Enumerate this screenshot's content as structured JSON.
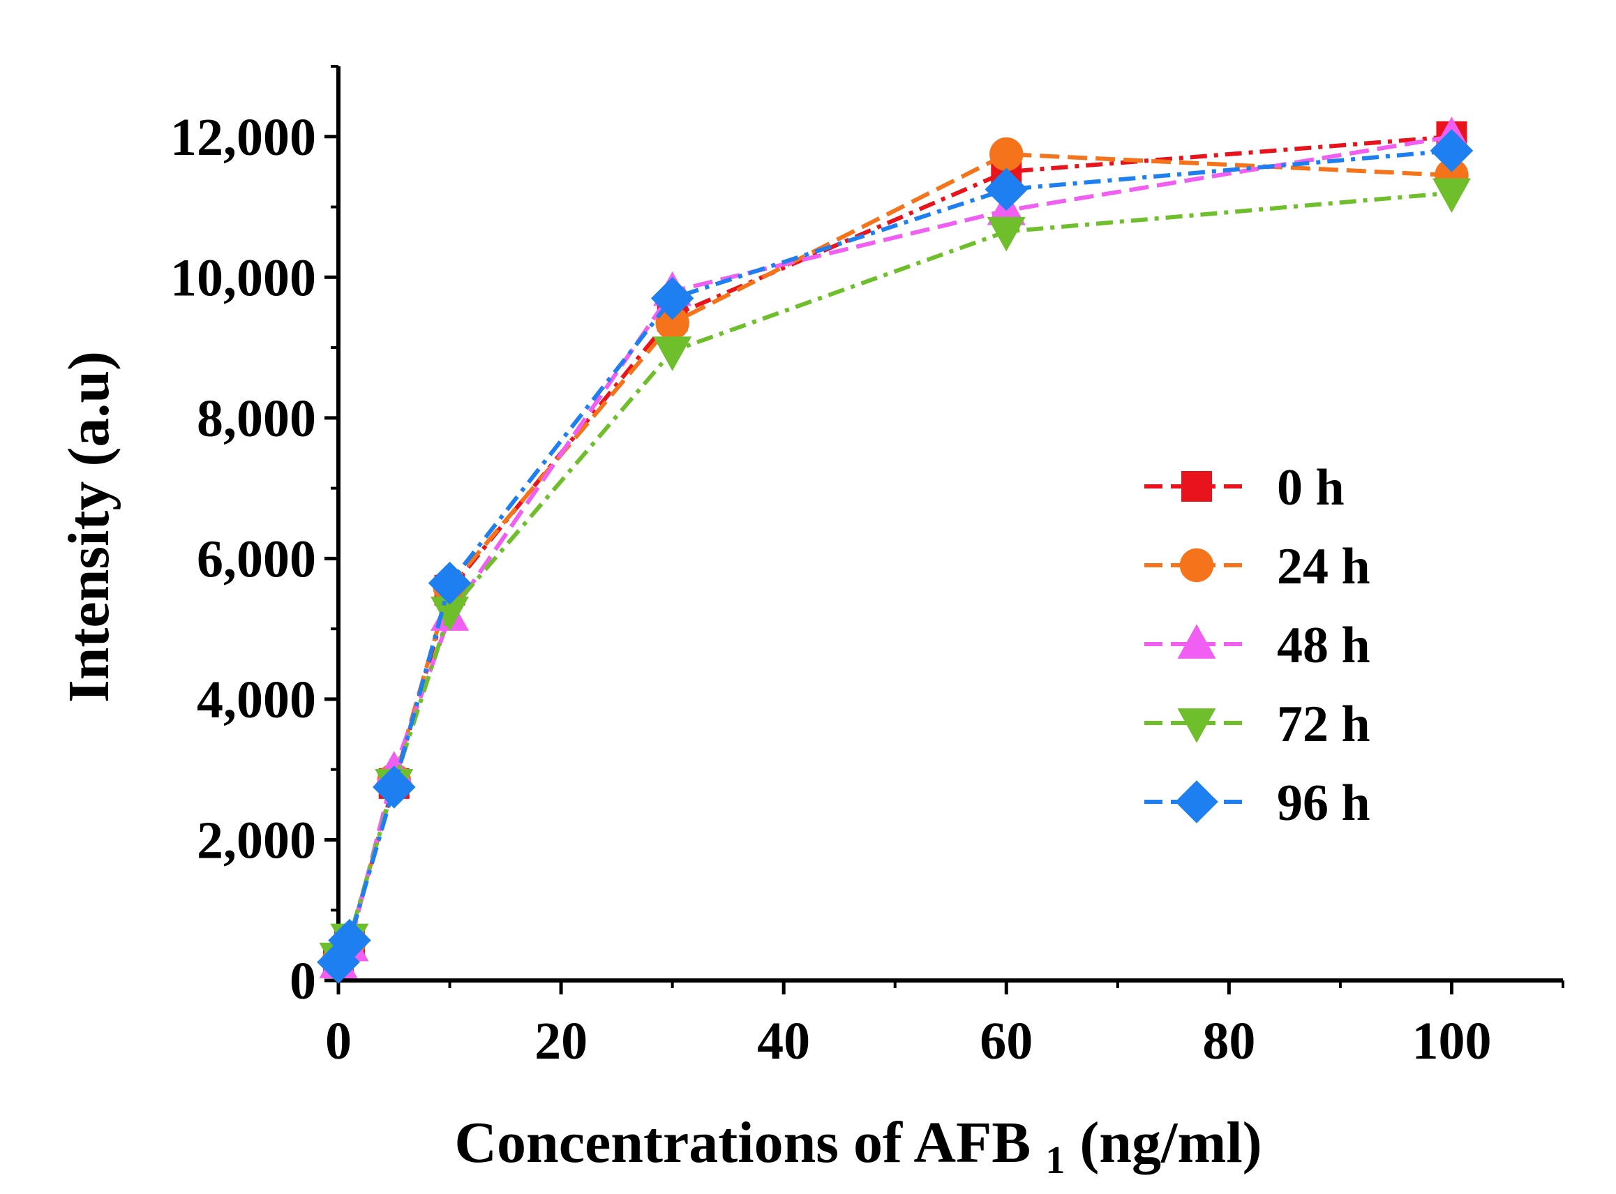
{
  "chart_data": {
    "type": "line",
    "title": "",
    "xlabel_main": "Concentrations of AFB",
    "xlabel_sub": "1",
    "xlabel_unit": " (ng/ml)",
    "ylabel": "Intensity (a.u)",
    "x": [
      0,
      1,
      5,
      10,
      30,
      60,
      100
    ],
    "xlim": [
      0,
      110
    ],
    "ylim": [
      0,
      13000
    ],
    "xticks": [
      0,
      20,
      40,
      60,
      80,
      100
    ],
    "xtick_labels": [
      "0",
      "20",
      "40",
      "60",
      "80",
      "100"
    ],
    "yticks": [
      0,
      2000,
      4000,
      6000,
      8000,
      10000,
      12000
    ],
    "ytick_labels": [
      "0",
      "2,000",
      "4,000",
      "6,000",
      "8,000",
      "10,000",
      "12,000"
    ],
    "grid": false,
    "legend_position": "right-middle",
    "series": [
      {
        "name": "0 h",
        "color": "#e8131b",
        "marker": "square",
        "dash": "24,10,6,10",
        "values": [
          250,
          550,
          2800,
          5550,
          9450,
          11500,
          12000
        ]
      },
      {
        "name": "24 h",
        "color": "#f5731b",
        "marker": "circle",
        "dash": "28,12",
        "values": [
          270,
          560,
          2850,
          5600,
          9350,
          11750,
          11450
        ]
      },
      {
        "name": "48 h",
        "color": "#f05ff2",
        "marker": "triangle-up",
        "dash": "28,12",
        "values": [
          240,
          480,
          2980,
          5180,
          9800,
          10950,
          12000
        ]
      },
      {
        "name": "72 h",
        "color": "#6fbf2c",
        "marker": "triangle-down",
        "dash": "24,10,6,10",
        "values": [
          330,
          600,
          2800,
          5250,
          8950,
          10650,
          11200
        ]
      },
      {
        "name": "96 h",
        "color": "#1e80f0",
        "marker": "diamond",
        "dash": "24,10,6,10",
        "values": [
          260,
          570,
          2750,
          5650,
          9700,
          11250,
          11800
        ]
      }
    ]
  }
}
